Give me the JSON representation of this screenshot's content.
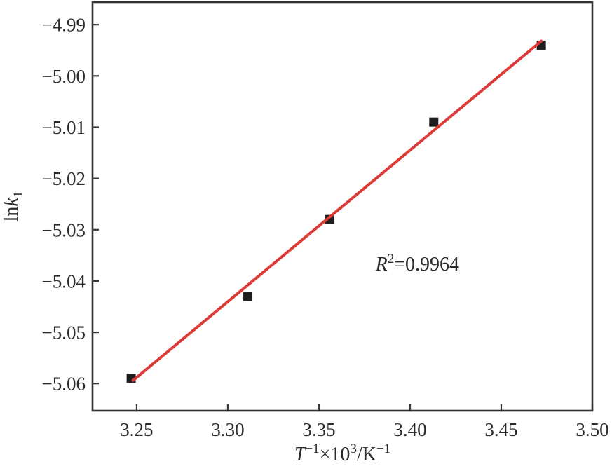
{
  "figure": {
    "kind": "arrhenius-linear-fit-plot",
    "background": "#ffffff"
  },
  "chart_data": {
    "type": "scatter",
    "title": "",
    "xlabel": "T⁻¹×10³/K⁻¹",
    "ylabel": "lnk₁",
    "xlabel_parts": [
      {
        "t": "T",
        "italic": true
      },
      {
        "t": "−1",
        "sup": true
      },
      {
        "t": "×10"
      },
      {
        "t": "3",
        "sup": true
      },
      {
        "t": "/K"
      },
      {
        "t": "−1",
        "sup": true
      }
    ],
    "ylabel_parts": [
      {
        "t": "ln"
      },
      {
        "t": "k",
        "italic": true
      },
      {
        "t": "1",
        "sub": true
      }
    ],
    "xlim": [
      3.2258,
      3.5
    ],
    "ylim": [
      -5.0653,
      -4.9856
    ],
    "x_ticks": [
      3.25,
      3.3,
      3.35,
      3.4,
      3.45,
      3.5
    ],
    "y_ticks": [
      -4.99,
      -5.0,
      -5.01,
      -5.02,
      -5.03,
      -5.04,
      -5.05,
      -5.06
    ],
    "tick_decimals": 2,
    "grid": false,
    "legend": null,
    "points": [
      {
        "x": 3.247,
        "y": -5.059
      },
      {
        "x": 3.311,
        "y": -5.043
      },
      {
        "x": 3.356,
        "y": -5.028
      },
      {
        "x": 3.413,
        "y": -5.009
      },
      {
        "x": 3.472,
        "y": -4.994
      }
    ],
    "fit_line": {
      "x1": 3.248,
      "y1": -5.0594,
      "x2": 3.472,
      "y2": -4.9932,
      "color": "#dd3937",
      "width": 4
    },
    "annotation": {
      "text": "R²=0.9964",
      "r_squared": 0.9964,
      "parts": [
        {
          "t": "R",
          "italic": true
        },
        {
          "t": "2",
          "sup": true
        },
        {
          "t": "=0.9964"
        }
      ],
      "x": 3.404,
      "y": -5.0367
    },
    "marker": {
      "shape": "square",
      "color": "#1e1e1e",
      "size": 13
    },
    "axis_color": "#333333",
    "text_color": "#2b2b2b"
  }
}
